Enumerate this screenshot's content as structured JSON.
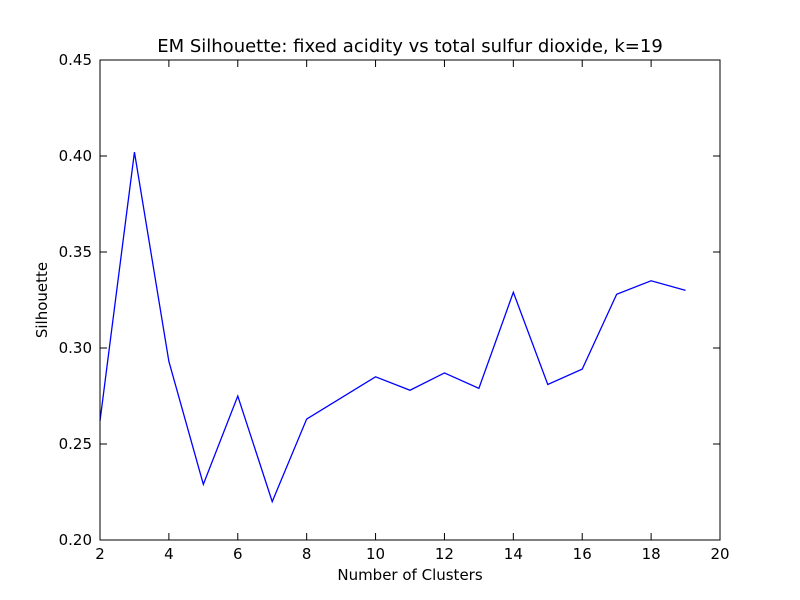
{
  "chart_data": {
    "type": "line",
    "title": "EM Silhouette: fixed acidity vs total sulfur dioxide, k=19",
    "xlabel": "Number of Clusters",
    "ylabel": "Silhouette",
    "xlim": [
      2,
      20
    ],
    "ylim": [
      0.2,
      0.45
    ],
    "x_ticks": [
      2,
      4,
      6,
      8,
      10,
      12,
      14,
      16,
      18,
      20
    ],
    "y_ticks": [
      0.2,
      0.25,
      0.3,
      0.35,
      0.4,
      0.45
    ],
    "x_tick_labels": [
      "2",
      "4",
      "6",
      "8",
      "10",
      "12",
      "14",
      "16",
      "18",
      "20"
    ],
    "y_tick_labels": [
      "0.20",
      "0.25",
      "0.30",
      "0.35",
      "0.40",
      "0.45"
    ],
    "grid": false,
    "series": [
      {
        "color": "#0000ff",
        "x": [
          2,
          3,
          4,
          5,
          6,
          7,
          8,
          9,
          10,
          11,
          12,
          13,
          14,
          15,
          16,
          17,
          18,
          19
        ],
        "y": [
          0.262,
          0.402,
          0.293,
          0.229,
          0.275,
          0.22,
          0.263,
          0.274,
          0.285,
          0.278,
          0.287,
          0.279,
          0.329,
          0.281,
          0.289,
          0.328,
          0.335,
          0.33
        ]
      }
    ]
  }
}
